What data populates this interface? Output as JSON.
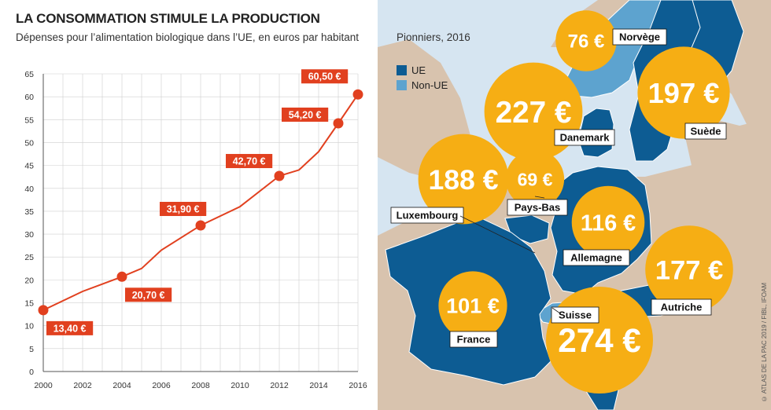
{
  "header": {
    "title": "LA CONSOMMATION STIMULE LA PRODUCTION",
    "subtitle": "Dépenses pour l’alimentation biologique dans l’UE, en euros par habitant"
  },
  "legend": {
    "title": "Pionniers, 2016",
    "items": [
      {
        "label": "UE",
        "color": "#0d5c93"
      },
      {
        "label": "Non-UE",
        "color": "#5da3cf"
      }
    ]
  },
  "credit": "© ATLAS DE LA PAC 2019 / FIBL, IFOAM",
  "colors": {
    "line": "#e1401f",
    "label_bg": "#e1401f",
    "bubble": "#f6ae14",
    "eu": "#0d5c93",
    "non_eu": "#5da3cf",
    "land": "#d8c3ae",
    "sea": "#d6e5f1"
  },
  "chart_data": [
    {
      "type": "line",
      "title": "Dépenses pour l’alimentation biologique dans l’UE, en euros par habitant",
      "x": [
        2000,
        2002,
        2004,
        2005,
        2006,
        2008,
        2010,
        2012,
        2013,
        2014,
        2015,
        2016
      ],
      "y": [
        13.4,
        17.5,
        20.7,
        22.5,
        26.5,
        31.9,
        36.0,
        42.7,
        44.0,
        48.0,
        54.2,
        60.5
      ],
      "xticks": [
        "2000",
        "2002",
        "2004",
        "2006",
        "2008",
        "2010",
        "2012",
        "2014",
        "2016"
      ],
      "yticks": [
        "0",
        "5",
        "10",
        "15",
        "20",
        "25",
        "30",
        "35",
        "40",
        "45",
        "50",
        "55",
        "60",
        "65"
      ],
      "xlim": [
        2000,
        2016
      ],
      "ylim": [
        0,
        65
      ],
      "grid": true,
      "labeled_points": [
        {
          "x": 2000,
          "y": 13.4,
          "label": "13,40 €"
        },
        {
          "x": 2004,
          "y": 20.7,
          "label": "20,70 €"
        },
        {
          "x": 2008,
          "y": 31.9,
          "label": "31,90 €"
        },
        {
          "x": 2012,
          "y": 42.7,
          "label": "42,70 €"
        },
        {
          "x": 2015,
          "y": 54.2,
          "label": "54,20 €"
        },
        {
          "x": 2016,
          "y": 60.5,
          "label": "60,50 €"
        }
      ]
    },
    {
      "type": "bubble-map",
      "title": "Pionniers, 2016",
      "series": [
        {
          "name": "UE",
          "color": "#0d5c93"
        },
        {
          "name": "Non-UE",
          "color": "#5da3cf"
        }
      ],
      "points": [
        {
          "country": "Norvège",
          "value": 76,
          "label": "76 €",
          "group": "Non-UE"
        },
        {
          "country": "Danemark",
          "value": 227,
          "label": "227 €",
          "group": "UE"
        },
        {
          "country": "Suède",
          "value": 197,
          "label": "197 €",
          "group": "UE"
        },
        {
          "country": "Luxembourg",
          "value": 188,
          "label": "188 €",
          "group": "UE"
        },
        {
          "country": "Pays-Bas",
          "value": 69,
          "label": "69 €",
          "group": "UE"
        },
        {
          "country": "Allemagne",
          "value": 116,
          "label": "116 €",
          "group": "UE"
        },
        {
          "country": "Autriche",
          "value": 177,
          "label": "177 €",
          "group": "UE"
        },
        {
          "country": "France",
          "value": 101,
          "label": "101 €",
          "group": "UE"
        },
        {
          "country": "Suisse",
          "value": 274,
          "label": "274 €",
          "group": "Non-UE"
        }
      ]
    }
  ]
}
